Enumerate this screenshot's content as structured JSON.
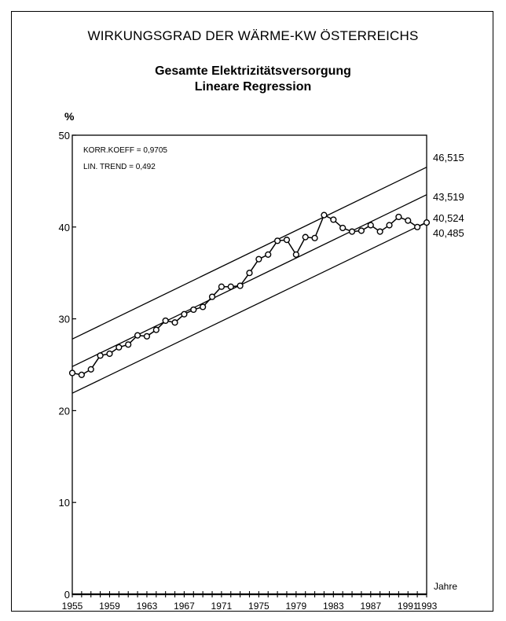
{
  "chart_data": {
    "type": "line",
    "title": "WIRKUNGSGRAD DER WÄRME-KW ÖSTERREICHS",
    "subtitle": [
      "Gesamte Elektrizitätsversorgung",
      "Lineare Regression"
    ],
    "ylabel": "%",
    "xlabel": "Jahre",
    "ylim": [
      0,
      50
    ],
    "xlim": [
      1955,
      1993
    ],
    "y_ticks": [
      "0",
      "10",
      "20",
      "30",
      "40",
      "50"
    ],
    "x_ticks": [
      "1955",
      "1959",
      "1963",
      "1967",
      "1971",
      "1975",
      "1979",
      "1983",
      "1987",
      "1991",
      "1993"
    ],
    "annotations": [
      "KORR.KOEFF = 0,9705",
      "LIN. TREND = 0,492"
    ],
    "end_labels": [
      "46,515",
      "43,519",
      "40,524",
      "40,485"
    ],
    "series": [
      {
        "kind": "data",
        "x": [
          1955,
          1956,
          1957,
          1958,
          1959,
          1960,
          1961,
          1962,
          1963,
          1964,
          1965,
          1966,
          1967,
          1968,
          1969,
          1970,
          1971,
          1972,
          1973,
          1974,
          1975,
          1976,
          1977,
          1978,
          1979,
          1980,
          1981,
          1982,
          1983,
          1984,
          1985,
          1986,
          1987,
          1988,
          1989,
          1990,
          1991,
          1992,
          1993
        ],
        "y": [
          24.1,
          23.9,
          24.5,
          26.0,
          26.2,
          26.9,
          27.2,
          28.2,
          28.1,
          28.8,
          29.8,
          29.6,
          30.5,
          31.0,
          31.3,
          32.4,
          33.5,
          33.5,
          33.6,
          35.0,
          36.5,
          37.0,
          38.5,
          38.6,
          37.0,
          38.9,
          38.8,
          41.3,
          40.8,
          39.9,
          39.5,
          39.6,
          40.2,
          39.5,
          40.2,
          41.1,
          40.7,
          40.0,
          40.485
        ]
      },
      {
        "kind": "upper-band",
        "x": [
          1955,
          1993
        ],
        "y": [
          27.8,
          46.515
        ]
      },
      {
        "kind": "trend",
        "x": [
          1955,
          1993
        ],
        "y": [
          24.8,
          43.519
        ]
      },
      {
        "kind": "lower-band",
        "x": [
          1955,
          1993
        ],
        "y": [
          21.9,
          40.524
        ]
      }
    ]
  }
}
